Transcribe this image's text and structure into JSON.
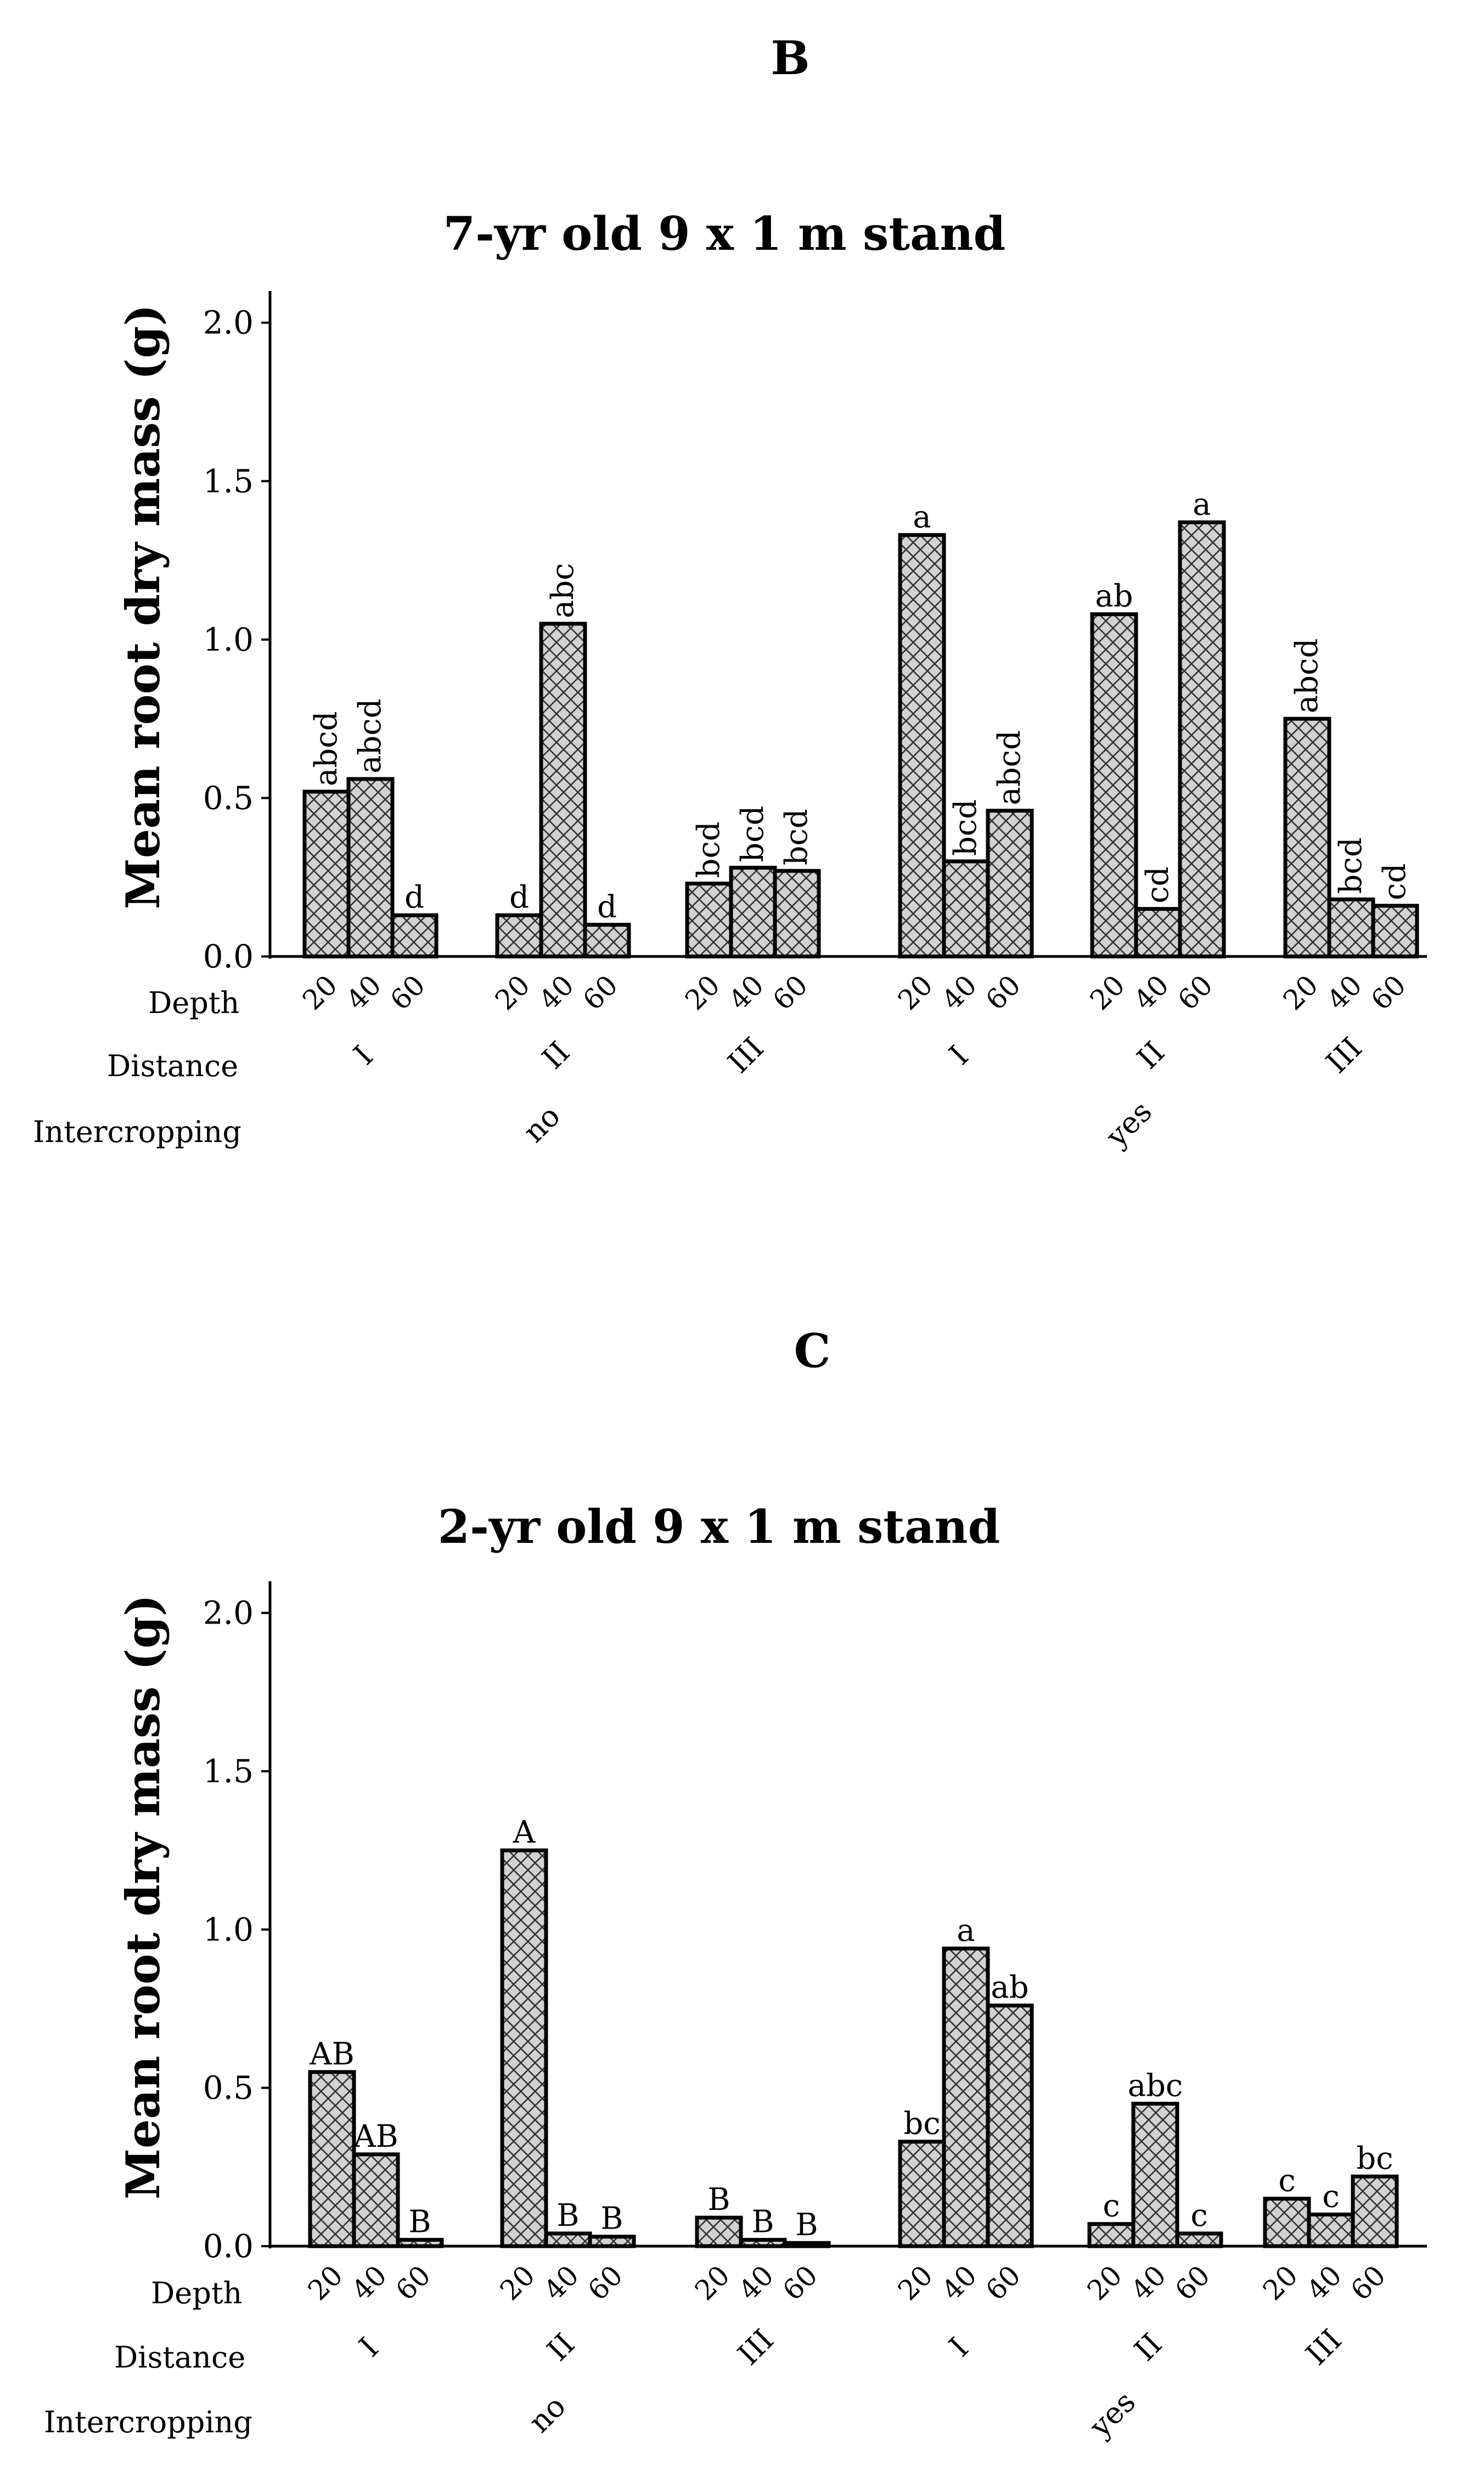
{
  "panels": [
    {
      "letter": "B",
      "chart_data": {
        "type": "bar",
        "title": "7-yr old 9 x 1 m stand",
        "ylabel": "Mean root dry mass (g)",
        "ylim": [
          0,
          2.1
        ],
        "yticks": [
          "0.0",
          "0.5",
          "1.0",
          "1.5",
          "2.0"
        ],
        "row_labels": [
          "Depth",
          "Distance",
          "Intercropping"
        ],
        "intercropping": [
          "no",
          "yes"
        ],
        "distances": [
          "I",
          "II",
          "III"
        ],
        "depths": [
          "20",
          "40",
          "60"
        ],
        "groups": [
          {
            "intercropping": "no",
            "distance": "I",
            "values": [
              0.52,
              0.56,
              0.13
            ],
            "letters": [
              "abcd",
              "abcd",
              "d"
            ]
          },
          {
            "intercropping": "no",
            "distance": "II",
            "values": [
              0.13,
              1.05,
              0.1
            ],
            "letters": [
              "d",
              "abc",
              "d"
            ]
          },
          {
            "intercropping": "no",
            "distance": "III",
            "values": [
              0.23,
              0.28,
              0.27
            ],
            "letters": [
              "bcd",
              "bcd",
              "bcd"
            ]
          },
          {
            "intercropping": "yes",
            "distance": "I",
            "values": [
              1.33,
              0.3,
              0.46
            ],
            "letters": [
              "a",
              "bcd",
              "abcd"
            ]
          },
          {
            "intercropping": "yes",
            "distance": "II",
            "values": [
              1.08,
              0.15,
              1.37
            ],
            "letters": [
              "ab",
              "cd",
              "a"
            ]
          },
          {
            "intercropping": "yes",
            "distance": "III",
            "values": [
              0.75,
              0.18,
              0.16
            ],
            "letters": [
              "abcd",
              "bcd",
              "cd"
            ]
          }
        ],
        "letter_rotation": [
          [
            true,
            true,
            false
          ],
          [
            false,
            true,
            false
          ],
          [
            true,
            true,
            true
          ],
          [
            false,
            true,
            true
          ],
          [
            false,
            true,
            false
          ],
          [
            true,
            true,
            true
          ]
        ]
      }
    },
    {
      "letter": "C",
      "chart_data": {
        "type": "bar",
        "title": "2-yr old  9 x 1 m stand",
        "ylabel": "Mean root dry mass (g)",
        "ylim": [
          0,
          2.1
        ],
        "yticks": [
          "0.0",
          "0.5",
          "1.0",
          "1.5",
          "2.0"
        ],
        "row_labels": [
          "Depth",
          "Distance",
          "Intercropping"
        ],
        "intercropping": [
          "no",
          "yes"
        ],
        "distances": [
          "I",
          "II",
          "III"
        ],
        "depths": [
          "20",
          "40",
          "60"
        ],
        "groups": [
          {
            "intercropping": "no",
            "distance": "I",
            "values": [
              0.55,
              0.29,
              0.02
            ],
            "letters": [
              "AB",
              "AB",
              "B"
            ]
          },
          {
            "intercropping": "no",
            "distance": "II",
            "values": [
              1.25,
              0.04,
              0.03
            ],
            "letters": [
              "A",
              "B",
              "B"
            ]
          },
          {
            "intercropping": "no",
            "distance": "III",
            "values": [
              0.09,
              0.02,
              0.01
            ],
            "letters": [
              "B",
              "B",
              "B"
            ]
          },
          {
            "intercropping": "yes",
            "distance": "I",
            "values": [
              0.33,
              0.94,
              0.76
            ],
            "letters": [
              "bc",
              "a",
              "ab"
            ]
          },
          {
            "intercropping": "yes",
            "distance": "II",
            "values": [
              0.07,
              0.45,
              0.04
            ],
            "letters": [
              "c",
              "abc",
              "c"
            ]
          },
          {
            "intercropping": "yes",
            "distance": "III",
            "values": [
              0.15,
              0.1,
              0.22
            ],
            "letters": [
              "c",
              "c",
              "bc"
            ]
          }
        ],
        "letter_rotation": [
          [
            false,
            false,
            false
          ],
          [
            false,
            false,
            false
          ],
          [
            false,
            false,
            false
          ],
          [
            false,
            false,
            false
          ],
          [
            false,
            false,
            false
          ],
          [
            false,
            false,
            false
          ]
        ]
      }
    }
  ]
}
